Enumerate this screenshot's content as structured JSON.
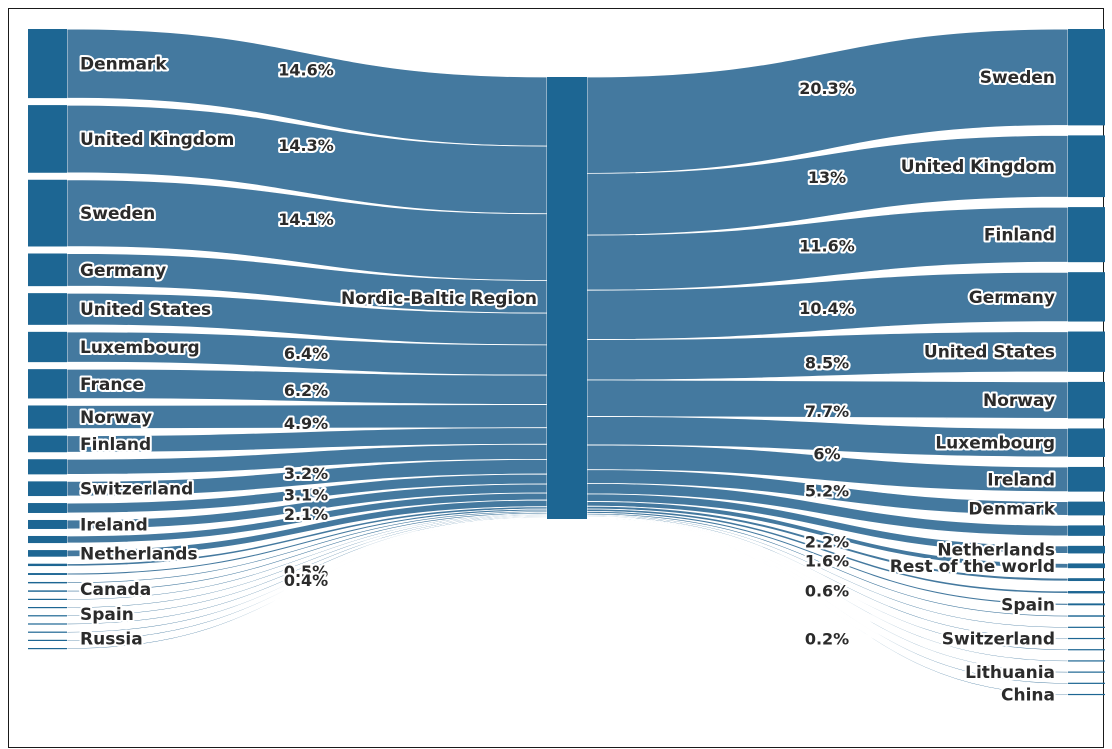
{
  "colors": {
    "flow": "#44799f",
    "node": "#1d6693",
    "text": "#2b2b2b",
    "halo": "#ffffff"
  },
  "chart_data": {
    "type": "sankey",
    "center_node": "Nordic-Baltic Region",
    "sources": [
      {
        "name": "Denmark",
        "value": 14.6,
        "label": "14.6%"
      },
      {
        "name": "United Kingdom",
        "value": 14.3,
        "label": "14.3%"
      },
      {
        "name": "Sweden",
        "value": 14.1,
        "label": "14.1%"
      },
      {
        "name": "Germany",
        "value": 6.9,
        "label": ""
      },
      {
        "name": "United States",
        "value": 6.7,
        "label": ""
      },
      {
        "name": "Luxembourg",
        "value": 6.4,
        "label": "6.4%"
      },
      {
        "name": "France",
        "value": 6.2,
        "label": "6.2%"
      },
      {
        "name": "Norway",
        "value": 4.9,
        "label": "4.9%"
      },
      {
        "name": "Finland",
        "value": 3.5,
        "label": ""
      },
      {
        "name": "",
        "value": 3.2,
        "label": "3.2%"
      },
      {
        "name": "Switzerland",
        "value": 3.1,
        "label": "3.1%"
      },
      {
        "name": "",
        "value": 2.1,
        "label": "2.1%"
      },
      {
        "name": "Ireland",
        "value": 1.9,
        "label": ""
      },
      {
        "name": "",
        "value": 1.5,
        "label": ""
      },
      {
        "name": "Netherlands",
        "value": 1.4,
        "label": ""
      },
      {
        "name": "",
        "value": 0.5,
        "label": "0.5%"
      },
      {
        "name": "",
        "value": 0.4,
        "label": "0.4%"
      },
      {
        "name": "",
        "value": 0.3,
        "label": ""
      },
      {
        "name": "Canada",
        "value": 0.3,
        "label": ""
      },
      {
        "name": "",
        "value": 0.2,
        "label": ""
      },
      {
        "name": "",
        "value": 0.2,
        "label": ""
      },
      {
        "name": "Spain",
        "value": 0.2,
        "label": ""
      },
      {
        "name": "",
        "value": 0.2,
        "label": ""
      },
      {
        "name": "",
        "value": 0.1,
        "label": ""
      },
      {
        "name": "Russia",
        "value": 0.1,
        "label": ""
      },
      {
        "name": "",
        "value": 0.1,
        "label": ""
      }
    ],
    "targets": [
      {
        "name": "Sweden",
        "value": 20.3,
        "label": "20.3%"
      },
      {
        "name": "United Kingdom",
        "value": 13,
        "label": "13%"
      },
      {
        "name": "Finland",
        "value": 11.6,
        "label": "11.6%"
      },
      {
        "name": "Germany",
        "value": 10.4,
        "label": "10.4%"
      },
      {
        "name": "United States",
        "value": 8.5,
        "label": "8.5%"
      },
      {
        "name": "Norway",
        "value": 7.7,
        "label": "7.7%"
      },
      {
        "name": "Luxembourg",
        "value": 6,
        "label": "6%"
      },
      {
        "name": "Ireland",
        "value": 5.2,
        "label": "5.2%"
      },
      {
        "name": "Denmark",
        "value": 2.9,
        "label": ""
      },
      {
        "name": "",
        "value": 2.2,
        "label": "2.2%"
      },
      {
        "name": "Netherlands",
        "value": 1.6,
        "label": "1.6%"
      },
      {
        "name": "Rest of the world",
        "value": 1,
        "label": ""
      },
      {
        "name": "",
        "value": 0.6,
        "label": "0.6%"
      },
      {
        "name": "",
        "value": 0.5,
        "label": ""
      },
      {
        "name": "Spain",
        "value": 0.4,
        "label": ""
      },
      {
        "name": "",
        "value": 0.3,
        "label": ""
      },
      {
        "name": "",
        "value": 0.2,
        "label": "0.2%"
      },
      {
        "name": "Switzerland",
        "value": 0.2,
        "label": ""
      },
      {
        "name": "",
        "value": 0.1,
        "label": ""
      },
      {
        "name": "",
        "value": 0.1,
        "label": ""
      },
      {
        "name": "Lithuania",
        "value": 0.1,
        "label": ""
      },
      {
        "name": "",
        "value": 0.1,
        "label": ""
      },
      {
        "name": "China",
        "value": 0.1,
        "label": ""
      }
    ]
  }
}
